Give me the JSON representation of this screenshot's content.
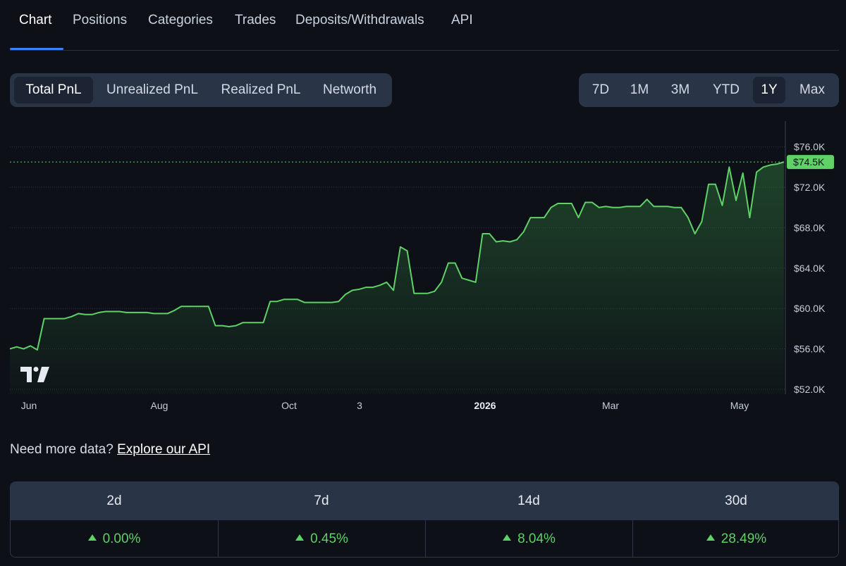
{
  "nav": {
    "tabs": [
      {
        "label": "Chart",
        "active": true
      },
      {
        "label": "Positions",
        "active": false
      },
      {
        "label": "Categories",
        "active": false
      },
      {
        "label": "Trades",
        "active": false
      },
      {
        "label": "Deposits/Withdrawals",
        "active": false
      },
      {
        "label": "API",
        "active": false
      }
    ]
  },
  "metric_selector": {
    "options": [
      "Total PnL",
      "Unrealized PnL",
      "Realized PnL",
      "Networth"
    ],
    "selected": "Total PnL"
  },
  "range_selector": {
    "options": [
      "7D",
      "1M",
      "3M",
      "YTD",
      "1Y",
      "Max"
    ],
    "selected": "1Y"
  },
  "chart_data": {
    "type": "area",
    "title": "",
    "xlabel": "",
    "ylabel": "",
    "x_tick_labels": [
      "Jun",
      "Aug",
      "Oct",
      "3",
      "2026",
      "Mar",
      "May"
    ],
    "y_tick_labels": [
      "$76.0K",
      "$72.0K",
      "$68.0K",
      "$64.0K",
      "$60.0K",
      "$56.0K",
      "$52.0K"
    ],
    "ylim": [
      52000,
      76500
    ],
    "current_value_label": "$74.5K",
    "current_value": 74500,
    "line_color": "#5fd167",
    "grid": true,
    "series": [
      {
        "values": [
          56000,
          56200,
          56000,
          56300,
          55900,
          59000,
          59000,
          59000,
          59000,
          59200,
          59500,
          59400,
          59400,
          59600,
          59700,
          59700,
          59700,
          59600,
          59600,
          59600,
          59600,
          59500,
          59500,
          59500,
          59800,
          60200,
          60200,
          60200,
          60200,
          60200,
          58300,
          58300,
          58200,
          58300,
          58600,
          58600,
          58600,
          58600,
          60700,
          60700,
          60900,
          60900,
          60900,
          60600,
          60600,
          60600,
          60600,
          60600,
          60700,
          61400,
          61800,
          61900,
          62100,
          62100,
          62300,
          62600,
          61800,
          66100,
          65700,
          61500,
          61500,
          61500,
          61700,
          62600,
          64500,
          64500,
          63000,
          62800,
          62600,
          67400,
          67400,
          66600,
          66700,
          66600,
          66800,
          67600,
          69000,
          69000,
          69000,
          70000,
          70400,
          70400,
          70400,
          69000,
          70500,
          70500,
          70000,
          70100,
          70000,
          70000,
          70100,
          70100,
          70100,
          70800,
          70100,
          70100,
          70100,
          70000,
          70000,
          69000,
          67400,
          68600,
          72300,
          72300,
          70200,
          74000,
          70700,
          73400,
          69000,
          73500,
          74000,
          74200,
          74300,
          74500
        ]
      }
    ]
  },
  "api_prompt": {
    "text": "Need more data?",
    "link": "Explore our API"
  },
  "stats": {
    "columns": [
      {
        "period": "2d",
        "change": "0.00%",
        "direction": "up"
      },
      {
        "period": "7d",
        "change": "0.45%",
        "direction": "up"
      },
      {
        "period": "14d",
        "change": "8.04%",
        "direction": "up"
      },
      {
        "period": "30d",
        "change": "28.49%",
        "direction": "up"
      }
    ]
  }
}
